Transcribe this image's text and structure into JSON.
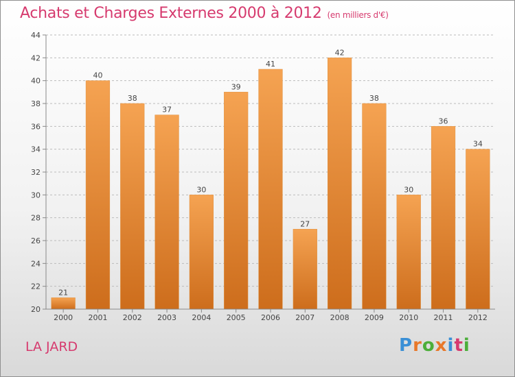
{
  "title": "Achats et Charges Externes 2000 à 2012",
  "subtitle": "(en milliers d'€)",
  "location_label": "LA JARD",
  "logo": {
    "text": "Proxiti",
    "letters": [
      "P",
      "r",
      "o",
      "x",
      "i",
      "t",
      "i"
    ],
    "colors": [
      "#3a8fd6",
      "#e8782a",
      "#4cae3a",
      "#e8782a",
      "#3a8fd6",
      "#d63a6e",
      "#4cae3a"
    ]
  },
  "colors": {
    "title": "#d63a6e",
    "bar_top": "#f5a352",
    "bar_bottom": "#cd6d1c",
    "axis": "#888888",
    "grid": "#bbbbbb"
  },
  "chart_data": {
    "type": "bar",
    "categories": [
      "2000",
      "2001",
      "2002",
      "2003",
      "2004",
      "2005",
      "2006",
      "2007",
      "2008",
      "2009",
      "2010",
      "2011",
      "2012"
    ],
    "values": [
      21,
      40,
      38,
      37,
      30,
      39,
      41,
      27,
      42,
      38,
      30,
      36,
      34
    ],
    "ylim": [
      20,
      44
    ],
    "yticks": [
      20,
      22,
      24,
      26,
      28,
      30,
      32,
      34,
      36,
      38,
      40,
      42,
      44
    ],
    "grid": true,
    "xlabel": "",
    "ylabel": ""
  }
}
